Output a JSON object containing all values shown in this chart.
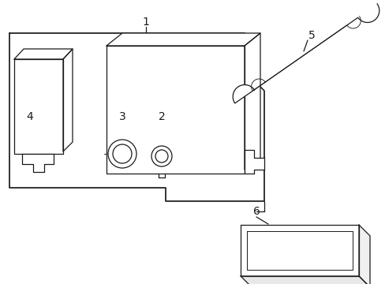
{
  "background_color": "#ffffff",
  "line_color": "#1a1a1a",
  "line_width": 0.9,
  "figsize": [
    4.89,
    3.6
  ],
  "dpi": 100,
  "xlim": [
    0,
    489
  ],
  "ylim": [
    0,
    360
  ]
}
